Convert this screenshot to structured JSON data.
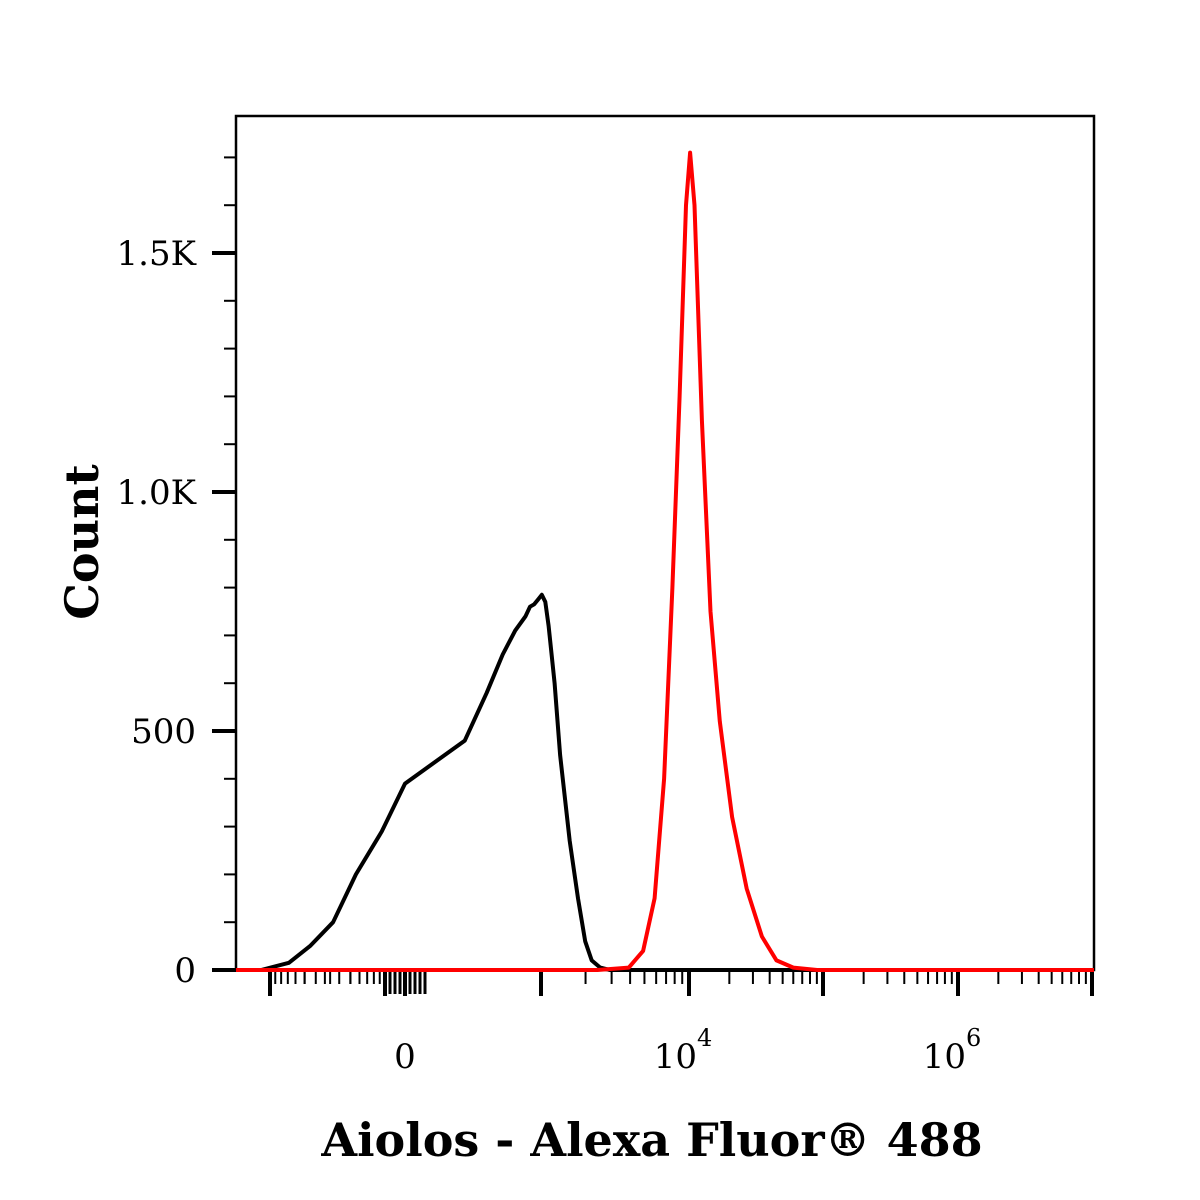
{
  "chart_data": {
    "type": "line",
    "title": "",
    "xlabel": "Aiolos - Alexa Fluor® 488",
    "ylabel": "Count",
    "x_scale": "biexponential",
    "x_ticks": [
      {
        "value": 0,
        "base": "0",
        "exp": ""
      },
      {
        "value": 10000,
        "base": "10",
        "exp": "4"
      },
      {
        "value": 1000000,
        "base": "10",
        "exp": "6"
      }
    ],
    "y_ticks": [
      {
        "value": 0,
        "label": "0"
      },
      {
        "value": 500,
        "label": "500"
      },
      {
        "value": 1000,
        "label": "1.0K"
      },
      {
        "value": 1500,
        "label": "1.5K"
      }
    ],
    "ylim": [
      0,
      1800
    ],
    "grid": false,
    "series": [
      {
        "color": "#000000",
        "x": [
          -2000,
          -1200,
          -800,
          -500,
          -300,
          -150,
          0,
          100,
          200,
          300,
          400,
          500,
          550,
          600,
          650,
          700,
          750,
          800,
          900,
          1000,
          1200,
          1400,
          1600,
          1800,
          2100,
          2500
        ],
        "y": [
          0,
          15,
          50,
          100,
          200,
          290,
          390,
          480,
          580,
          660,
          710,
          740,
          760,
          765,
          775,
          785,
          770,
          720,
          600,
          450,
          270,
          150,
          60,
          20,
          5,
          0
        ]
      },
      {
        "color": "#ff0000",
        "x": [
          2000,
          3500,
          4500,
          5500,
          6500,
          7500,
          8500,
          9500,
          10200,
          11000,
          12500,
          14500,
          17000,
          21000,
          27000,
          35000,
          45000,
          60000,
          90000
        ],
        "y": [
          0,
          5,
          40,
          150,
          400,
          800,
          1200,
          1600,
          1710,
          1600,
          1150,
          750,
          520,
          320,
          170,
          70,
          20,
          5,
          0
        ]
      }
    ]
  }
}
